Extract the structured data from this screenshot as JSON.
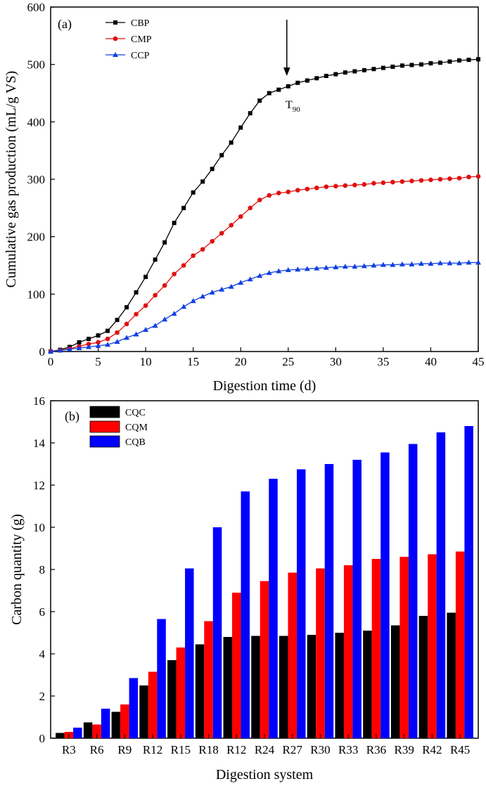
{
  "chart_data": [
    {
      "panel": "(a)",
      "type": "line",
      "xlabel": "Digestion time (d)",
      "ylabel": "Cumulative gas  production (mL/g VS)",
      "xlim": [
        0,
        45
      ],
      "ylim": [
        0,
        600
      ],
      "xticks": [
        0,
        5,
        10,
        15,
        20,
        25,
        30,
        35,
        40,
        45
      ],
      "yticks": [
        0,
        100,
        200,
        300,
        400,
        500,
        600
      ],
      "legend_position": "top-left",
      "annotation": {
        "text": "T",
        "subscript": "90",
        "x": 25
      },
      "series": [
        {
          "name": "CBP",
          "color": "#000000",
          "marker": "square",
          "x": [
            0,
            1,
            2,
            3,
            4,
            5,
            6,
            7,
            8,
            9,
            10,
            11,
            12,
            13,
            14,
            15,
            16,
            17,
            18,
            19,
            20,
            21,
            22,
            23,
            24,
            25,
            26,
            27,
            28,
            29,
            30,
            31,
            32,
            33,
            34,
            35,
            36,
            37,
            38,
            39,
            40,
            41,
            42,
            43,
            44,
            45
          ],
          "values": [
            0,
            3,
            8,
            16,
            22,
            28,
            36,
            55,
            77,
            103,
            130,
            160,
            190,
            224,
            250,
            277,
            296,
            318,
            342,
            364,
            390,
            415,
            437,
            450,
            456,
            462,
            468,
            472,
            476,
            480,
            483,
            486,
            488,
            490,
            492,
            494,
            496,
            498,
            499,
            500,
            502,
            503,
            505,
            507,
            508,
            509
          ]
        },
        {
          "name": "CMP",
          "color": "#e01010",
          "marker": "circle",
          "x": [
            0,
            1,
            2,
            3,
            4,
            5,
            6,
            7,
            8,
            9,
            10,
            11,
            12,
            13,
            14,
            15,
            16,
            17,
            18,
            19,
            20,
            21,
            22,
            23,
            24,
            25,
            26,
            27,
            28,
            29,
            30,
            31,
            32,
            33,
            34,
            35,
            36,
            37,
            38,
            39,
            40,
            41,
            42,
            43,
            44,
            45
          ],
          "values": [
            0,
            2,
            5,
            9,
            13,
            16,
            22,
            33,
            48,
            65,
            80,
            98,
            115,
            135,
            150,
            167,
            178,
            192,
            206,
            220,
            235,
            250,
            264,
            272,
            276,
            278,
            281,
            283,
            285,
            287,
            288,
            289,
            290,
            291,
            293,
            294,
            295,
            296,
            297,
            298,
            299,
            300,
            301,
            302,
            304,
            305
          ]
        },
        {
          "name": "CCP",
          "color": "#1040e0",
          "marker": "triangle",
          "x": [
            0,
            1,
            2,
            3,
            4,
            5,
            6,
            7,
            8,
            9,
            10,
            11,
            12,
            13,
            14,
            15,
            16,
            17,
            18,
            19,
            20,
            21,
            22,
            23,
            24,
            25,
            26,
            27,
            28,
            29,
            30,
            31,
            32,
            33,
            34,
            35,
            36,
            37,
            38,
            39,
            40,
            41,
            42,
            43,
            44,
            45
          ],
          "values": [
            0,
            2,
            4,
            6,
            8,
            10,
            12,
            17,
            24,
            30,
            38,
            45,
            56,
            66,
            78,
            88,
            96,
            103,
            108,
            113,
            120,
            126,
            132,
            137,
            140,
            142,
            143,
            144,
            145,
            146,
            147,
            148,
            148,
            149,
            150,
            151,
            151,
            152,
            152,
            153,
            153,
            154,
            154,
            154,
            155,
            155
          ]
        }
      ]
    },
    {
      "panel": "(b)",
      "type": "bar",
      "xlabel": "Digestion system",
      "ylabel": "Carbon quantity (g)",
      "ylim": [
        0,
        16
      ],
      "yticks": [
        0,
        2,
        4,
        6,
        8,
        10,
        12,
        14,
        16
      ],
      "legend_position": "top-left",
      "categories": [
        "R3",
        "R6",
        "R9",
        "R12",
        "R15",
        "R18",
        "R12",
        "R24",
        "R27",
        "R30",
        "R33",
        "R36",
        "R39",
        "R42",
        "R45"
      ],
      "series": [
        {
          "name": "CQC",
          "color": "#000000",
          "values": [
            0.25,
            0.75,
            1.25,
            2.5,
            3.7,
            4.45,
            4.8,
            4.85,
            4.85,
            4.9,
            5.0,
            5.1,
            5.35,
            5.8,
            5.95
          ]
        },
        {
          "name": "CQM",
          "color": "#ff0000",
          "values": [
            0.3,
            0.65,
            1.6,
            3.15,
            4.3,
            5.55,
            6.9,
            7.45,
            7.85,
            8.05,
            8.2,
            8.5,
            8.6,
            8.72,
            8.85
          ]
        },
        {
          "name": "CQB",
          "color": "#0000ff",
          "values": [
            0.5,
            1.4,
            2.85,
            5.65,
            8.05,
            10.0,
            11.7,
            12.3,
            12.75,
            13.0,
            13.2,
            13.55,
            13.95,
            14.5,
            14.8
          ]
        }
      ]
    }
  ]
}
